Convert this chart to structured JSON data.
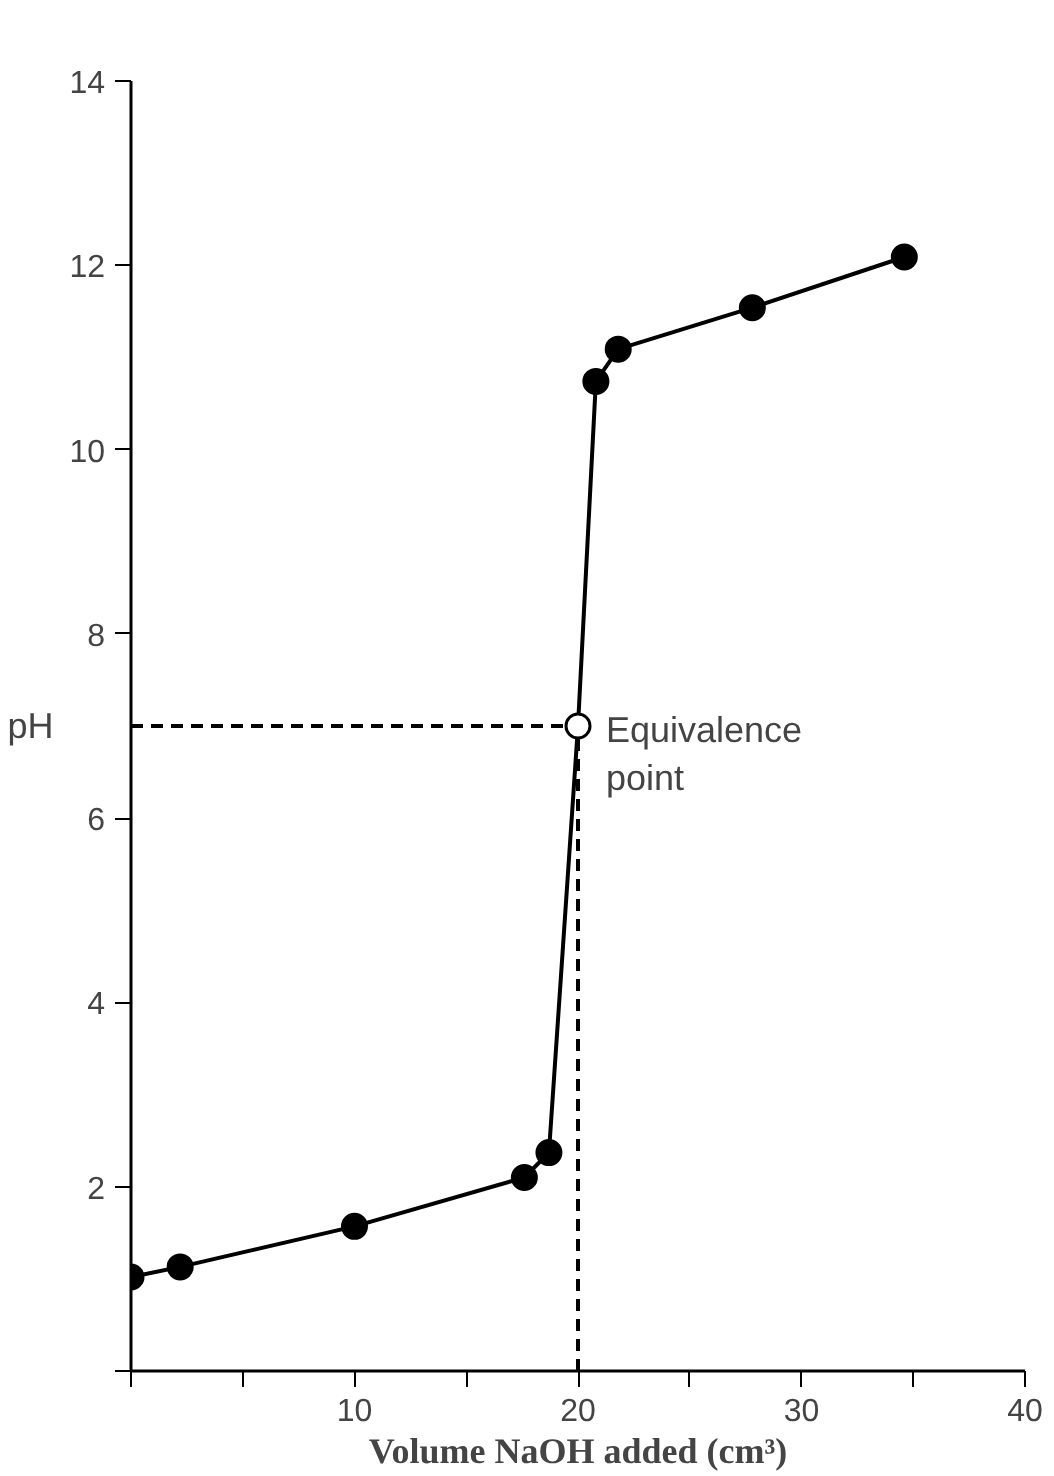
{
  "chart_data": {
    "type": "line",
    "xlabel": "Volume NaOH added (cm³)",
    "ylabel": "pH",
    "xlim": [
      0,
      40
    ],
    "ylim": [
      0,
      14
    ],
    "xticks": [
      {
        "value": 0,
        "label": null
      },
      {
        "value": 5,
        "label": null
      },
      10,
      {
        "value": 15,
        "label": null
      },
      20,
      {
        "value": 25,
        "label": null
      },
      30,
      {
        "value": 35,
        "label": null
      },
      40
    ],
    "yticks": [
      {
        "value": 0,
        "label": null
      },
      2,
      4,
      6,
      8,
      10,
      12,
      14
    ],
    "grid": false,
    "series": [
      {
        "marker": "none",
        "color": "#000000",
        "x": [
          0,
          2.2,
          10,
          17.6,
          18.7,
          20,
          20.8,
          21.8,
          27.8,
          34.6
        ],
        "values": [
          1.02,
          1.13,
          1.57,
          2.1,
          2.37,
          7.0,
          10.74,
          11.09,
          11.54,
          12.09
        ]
      },
      {
        "type": "scatter",
        "marker": "circle",
        "color": "#000000",
        "x": [
          0,
          2.2,
          10,
          17.6,
          18.7,
          20.8,
          21.8,
          27.8,
          34.6
        ],
        "values": [
          1.02,
          1.13,
          1.57,
          2.1,
          2.37,
          10.74,
          11.09,
          11.54,
          12.09
        ]
      },
      {
        "marker": "none",
        "line_style": "dashed",
        "color": "#000000",
        "x": [
          0,
          20,
          20
        ],
        "values": [
          7,
          7,
          0
        ]
      },
      {
        "type": "scatter",
        "marker": "circle",
        "color": "#ffffff",
        "x": [
          20
        ],
        "values": [
          7.0
        ]
      }
    ],
    "annotations": [
      {
        "text": "Equivalence point",
        "x": 20,
        "y": 7
      }
    ]
  }
}
